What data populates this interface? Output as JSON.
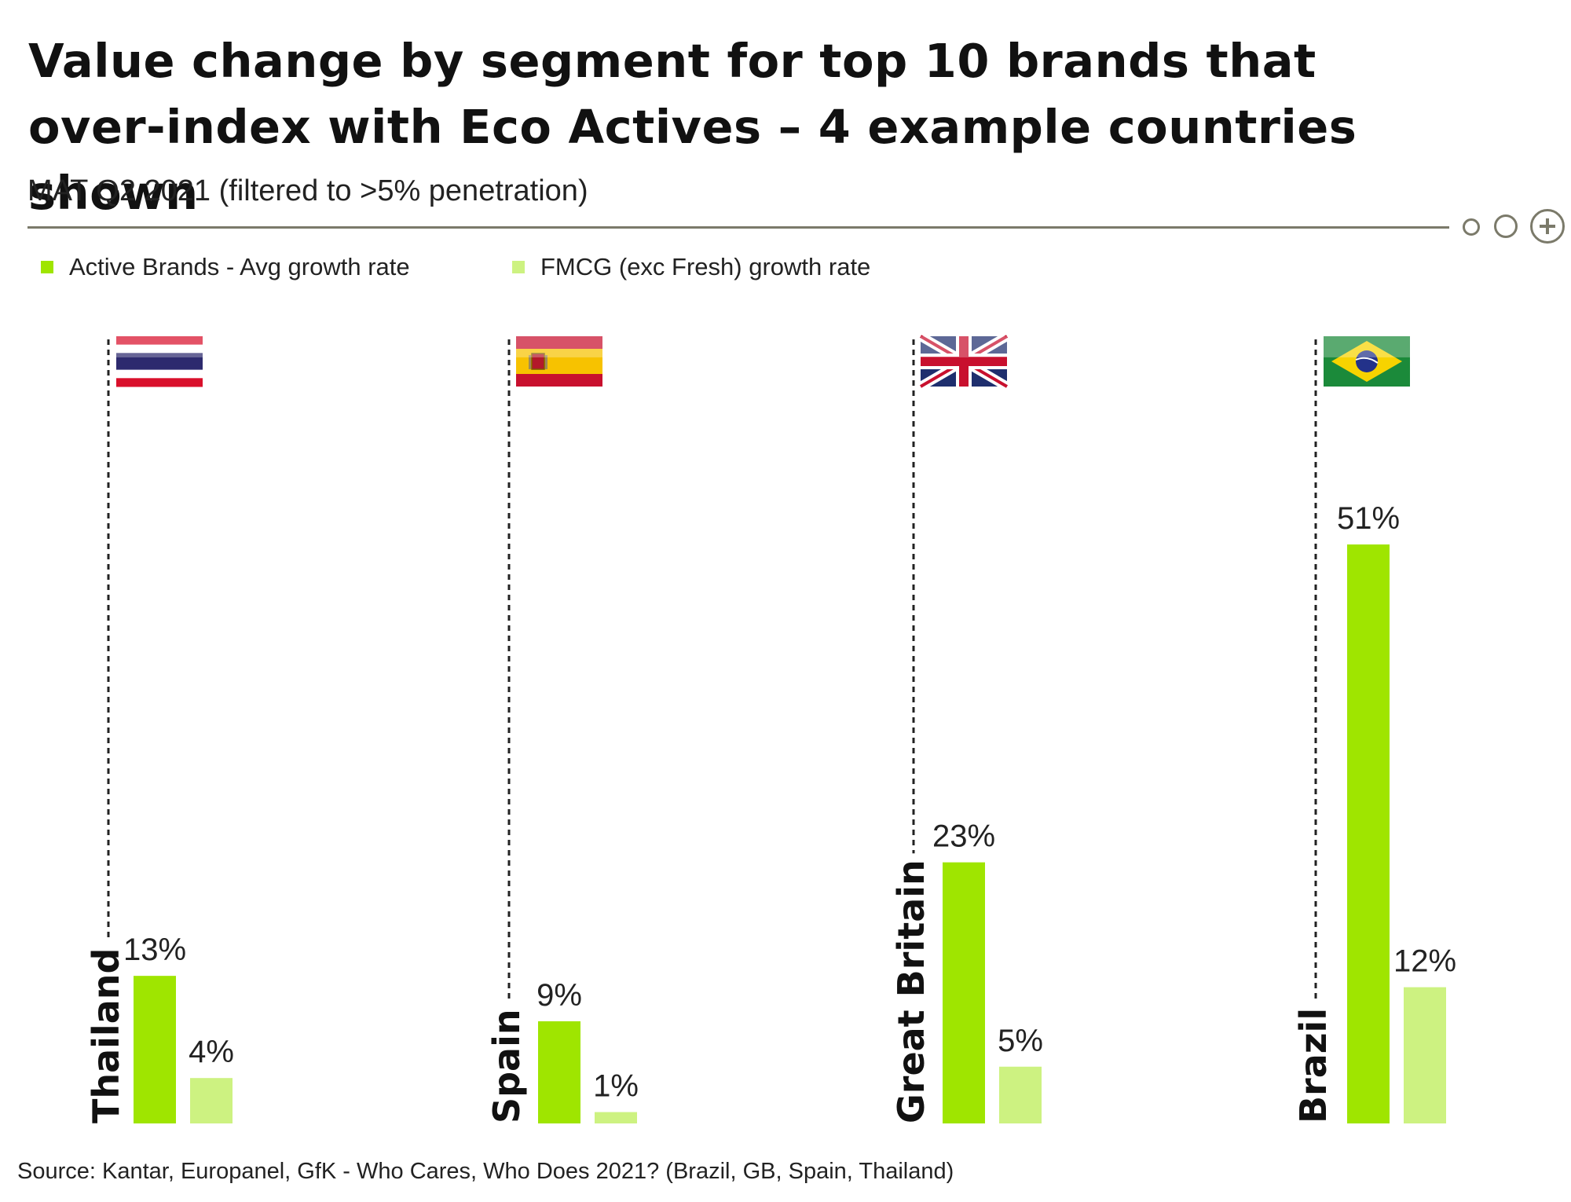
{
  "title_line1": "Value change by segment for top 10 brands that",
  "title_line2": "over-index with Eco Actives – 4 example countries shown",
  "subtitle": "MAT Q2 2021 (filtered to >5% penetration)",
  "source": "Source: Kantar, Europanel, GfK - Who Cares, Who Does 2021? (Brazil, GB, Spain, Thailand)",
  "icons": [
    "small-circle-icon",
    "circle-icon",
    "plus-circle-icon",
    "flag-thailand-icon",
    "flag-spain-icon",
    "flag-uk-icon",
    "flag-brazil-icon"
  ],
  "colors": {
    "active": "#9fe500",
    "fmcg": "#cdf281",
    "rule": "#7b7a6a"
  },
  "chart_data": {
    "type": "bar",
    "categories": [
      "Thailand",
      "Spain",
      "Great Britain",
      "Brazil"
    ],
    "series": [
      {
        "name": "Active Brands - Avg growth rate",
        "values": [
          13,
          9,
          23,
          51
        ],
        "labels": [
          "13%",
          "9%",
          "23%",
          "51%"
        ]
      },
      {
        "name": "FMCG (exc Fresh) growth rate",
        "values": [
          4,
          1,
          5,
          12
        ],
        "labels": [
          "4%",
          "1%",
          "5%",
          "12%"
        ]
      }
    ],
    "unit": "%",
    "legend": "top-left",
    "grid": false
  }
}
